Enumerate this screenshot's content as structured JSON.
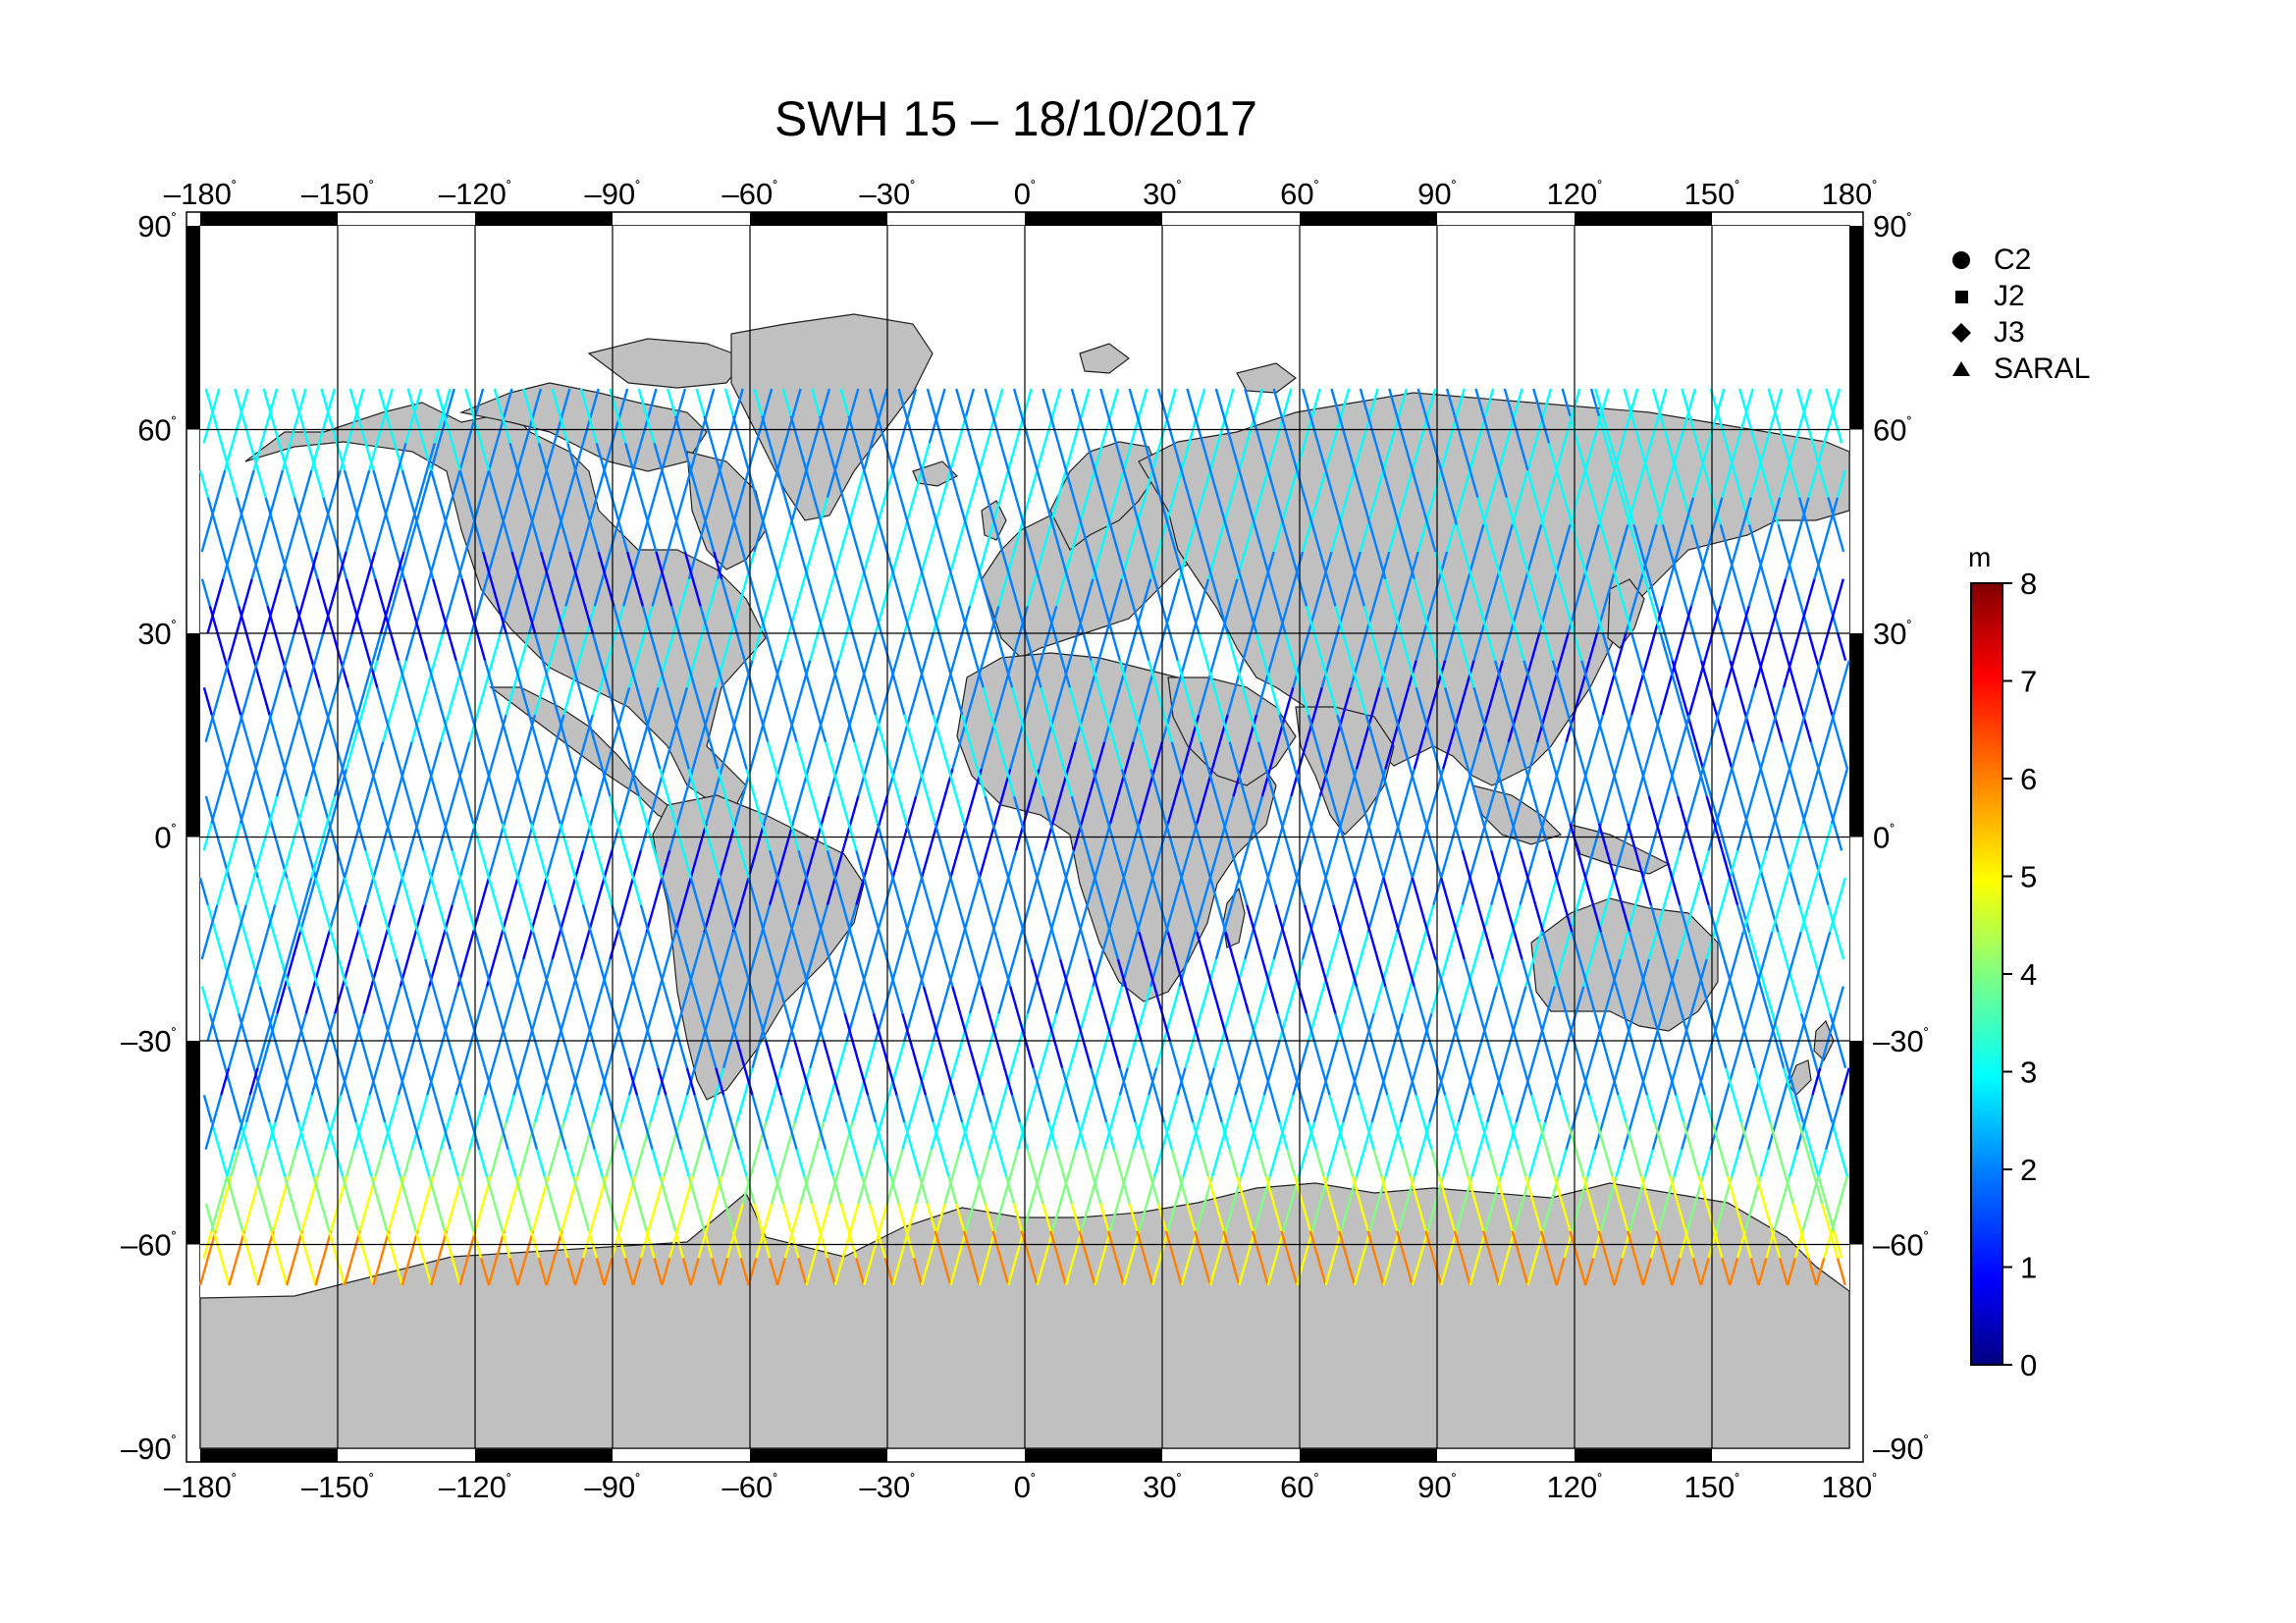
{
  "title": "SWH 15 – 18/10/2017",
  "map": {
    "lon_ticks": [
      "–180",
      "–150",
      "–120",
      "–90",
      "–60",
      "–30",
      "0",
      "30",
      "60",
      "90",
      "120",
      "150",
      "180"
    ],
    "lat_ticks": [
      "90",
      "60",
      "30",
      "0",
      "–30",
      "–60",
      "–90"
    ],
    "degree_mark": "˚",
    "land_color": "#c0c0c0",
    "ocean_color": "#ffffff"
  },
  "legend": {
    "items": [
      {
        "label": "C2",
        "marker": "circle"
      },
      {
        "label": "J2",
        "marker": "square"
      },
      {
        "label": "J3",
        "marker": "diamond"
      },
      {
        "label": "SARAL",
        "marker": "triangle"
      }
    ]
  },
  "colorbar": {
    "unit": "m",
    "ticks": [
      "0",
      "1",
      "2",
      "3",
      "4",
      "5",
      "6",
      "7",
      "8"
    ],
    "colors": [
      "#000080",
      "#0000ff",
      "#0080ff",
      "#00ffff",
      "#80ff80",
      "#ffff00",
      "#ff8000",
      "#ff0000",
      "#800000"
    ]
  }
}
